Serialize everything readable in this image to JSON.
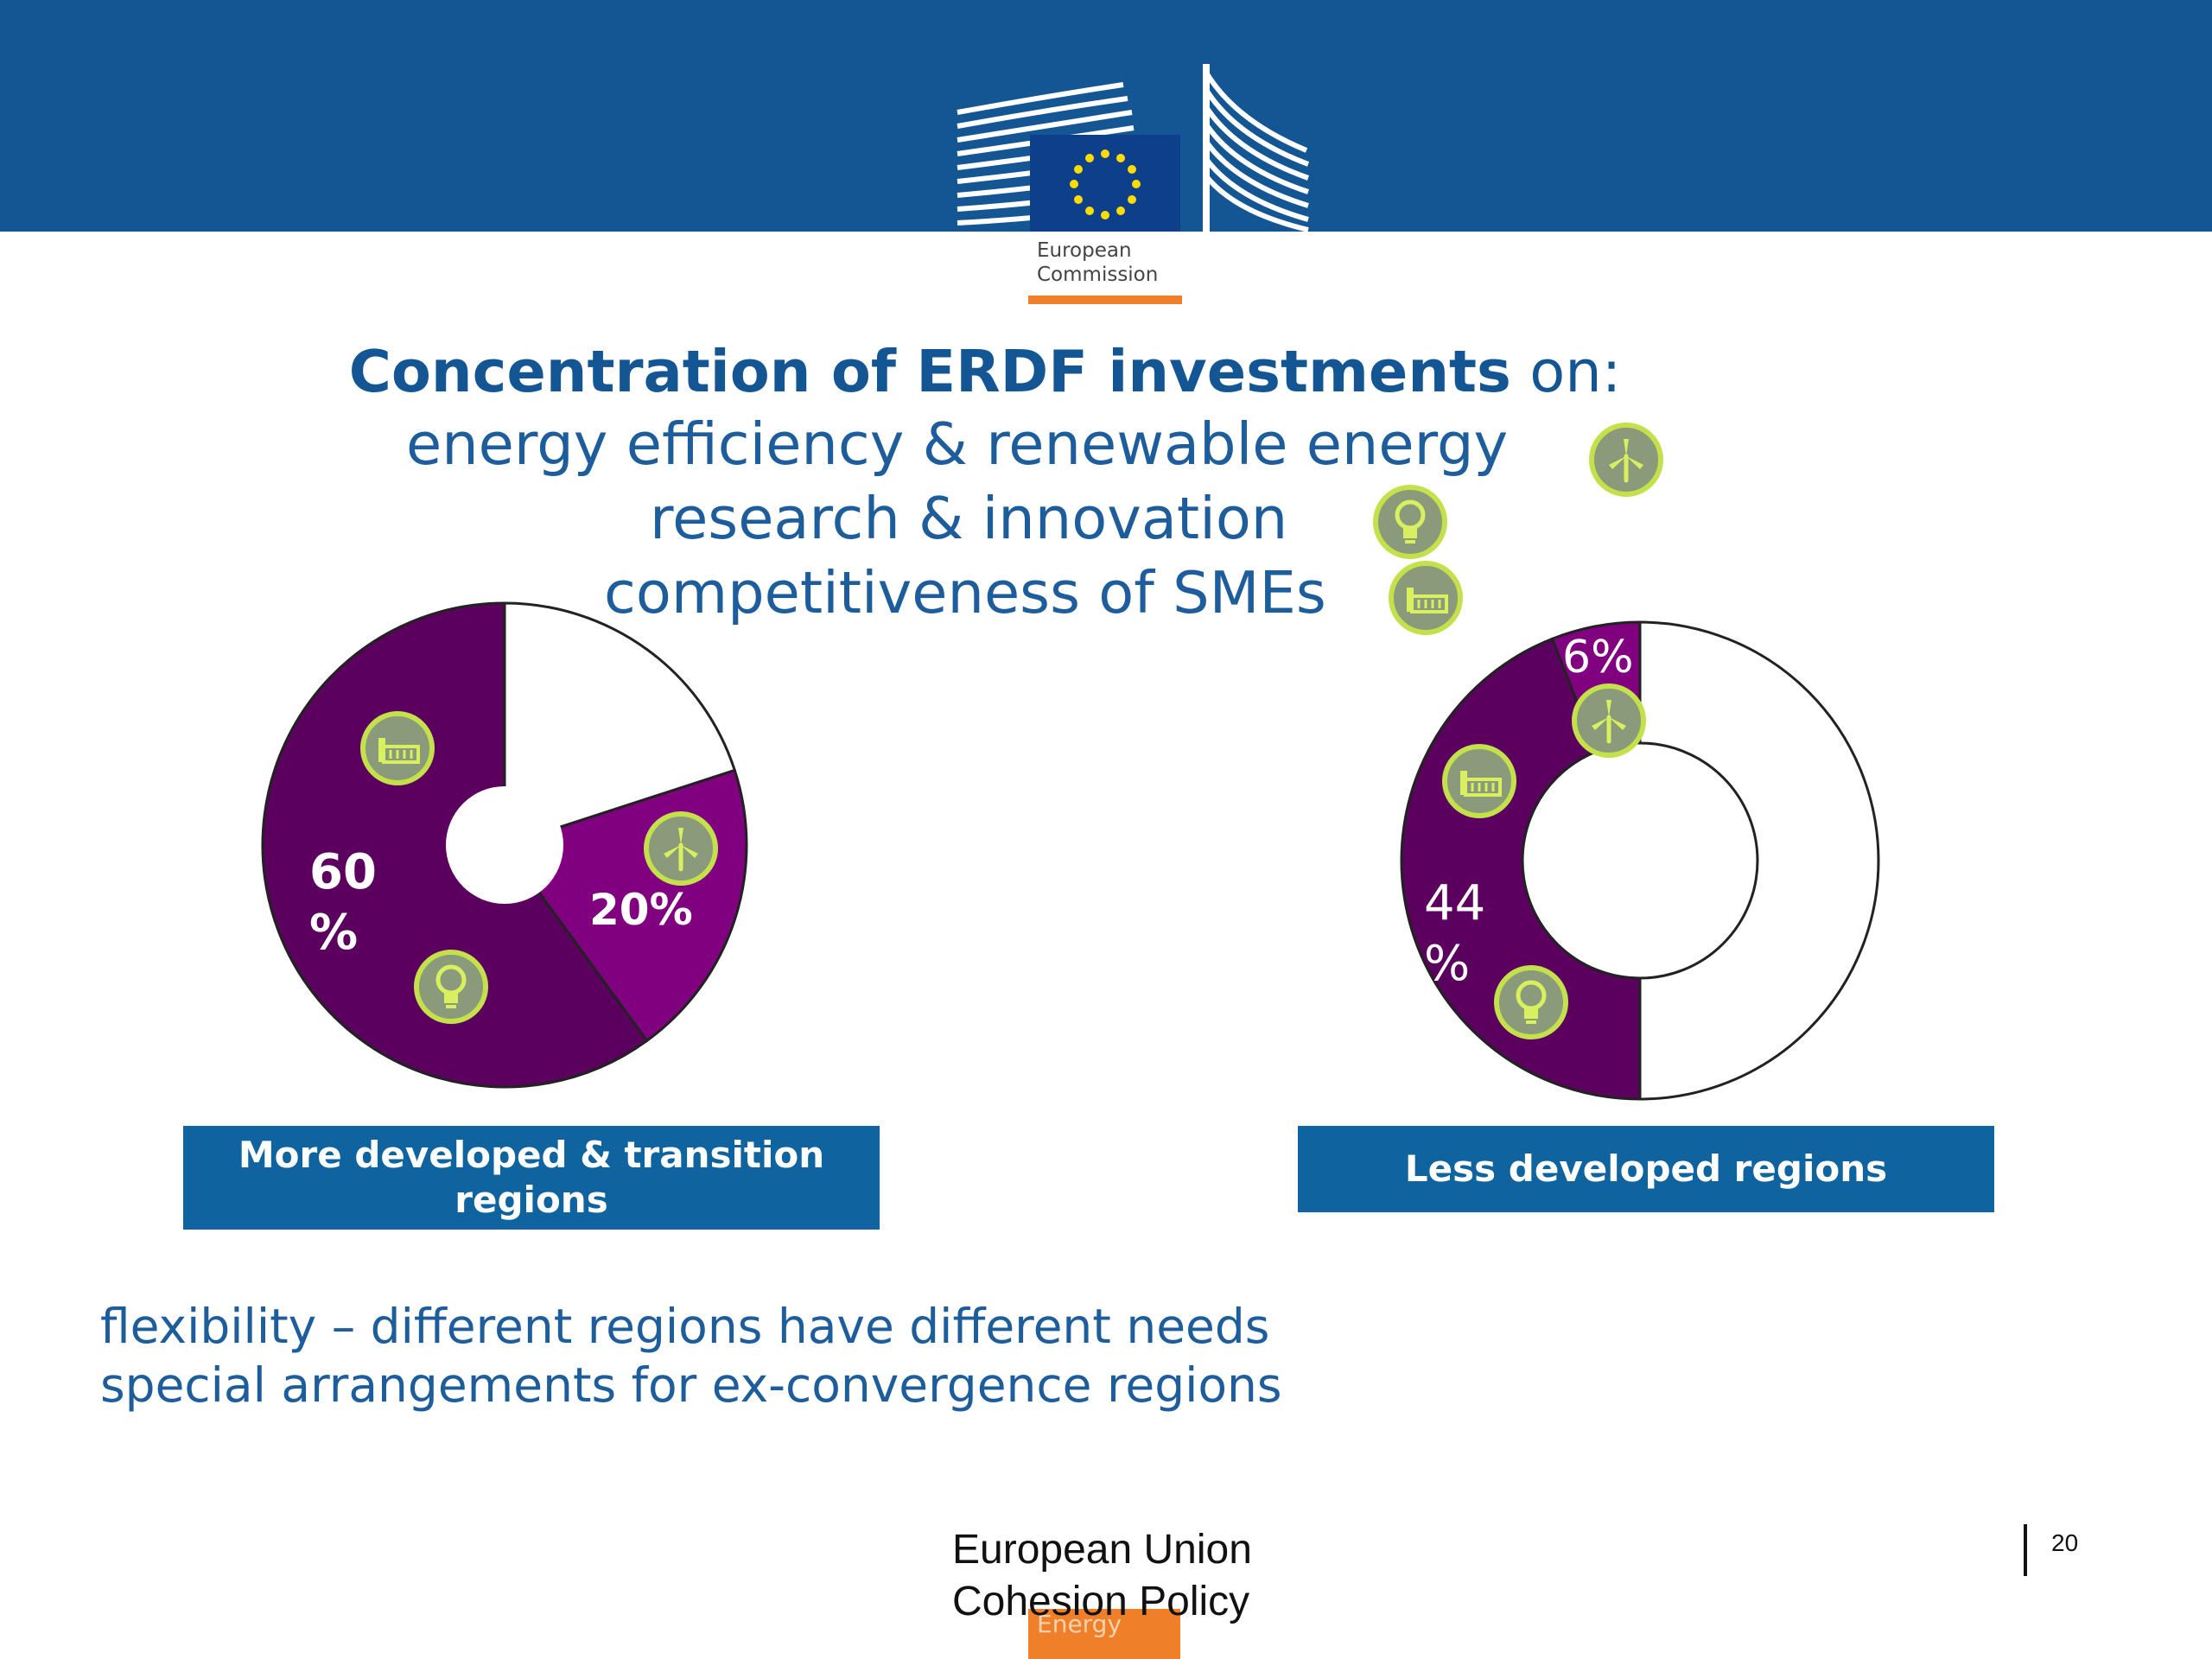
{
  "colors": {
    "banner": "#145694",
    "title_blue": "#145694",
    "label_box": "#0f64a0",
    "purple_dark": "#5c0060",
    "purple_light": "#800080",
    "badge_green": "#a8c63e",
    "orange": "#f07f2a"
  },
  "logo": {
    "line1": "European",
    "line2": "Commission"
  },
  "title": {
    "bold": "Concentration of ERDF investments",
    "rest": " on:"
  },
  "topics": [
    {
      "label": "energy efficiency & renewable energy",
      "icon": "wind-turbine-icon"
    },
    {
      "label": "research & innovation",
      "icon": "lightbulb-icon"
    },
    {
      "label": "competitiveness of SMEs",
      "icon": "factory-icon"
    }
  ],
  "chart_data": [
    {
      "type": "pie",
      "title": "More developed & transition regions",
      "slices": [
        {
          "label": "60%",
          "value": 60
        },
        {
          "label": "20%",
          "value": 20
        },
        {
          "label": "",
          "value": 20
        }
      ]
    },
    {
      "type": "pie",
      "title": "Less developed regions",
      "slices": [
        {
          "label": "44%",
          "value": 44
        },
        {
          "label": "6%",
          "value": 6
        },
        {
          "label": "",
          "value": 50
        }
      ]
    }
  ],
  "chart_labels": {
    "left_big_num": "60",
    "left_big_sign": "%",
    "left_small": "20%",
    "right_big_num": "44",
    "right_big_sign": "%",
    "right_small": "6%"
  },
  "region_labels": {
    "left_line1": "More developed & transition",
    "left_line2": "regions",
    "right": "Less developed regions"
  },
  "bottom_text": {
    "line1": "flexibility – different regions have different needs",
    "line2": "special arrangements for ex-convergence regions"
  },
  "footer": {
    "line1": "European Union",
    "line2": "Cohesion Policy",
    "tag": "Energy",
    "page": "20"
  }
}
